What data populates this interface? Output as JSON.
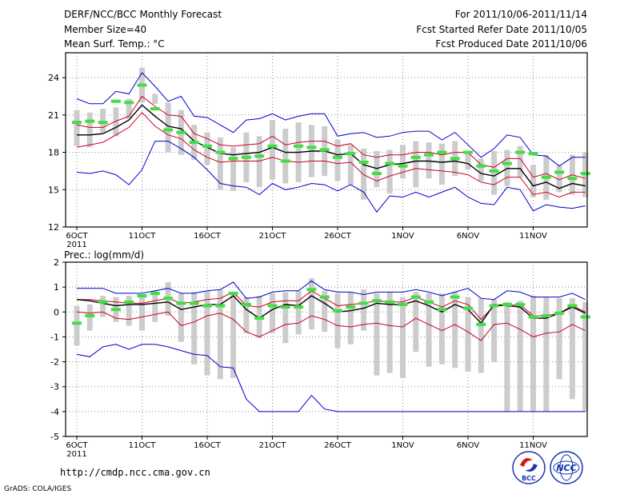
{
  "header": {
    "title": "DERF/NCC/BCC Monthly Forecast",
    "member_size": "Member Size=40",
    "variable": "Mean Surf. Temp.: °C",
    "period": "For 2011/10/06-2011/11/14",
    "fcst_started": "Fcst Started Refer Date 2011/10/05",
    "fcst_produced": "Fcst Produced Date 2011/10/06"
  },
  "footer": {
    "url": "http://cmdp.ncc.cma.gov.cn",
    "credit": "GrADS: COLA/IGES",
    "logo_bcc": "BCC",
    "logo_ncc": "NCC"
  },
  "colors": {
    "envelope": "#0000cc",
    "spread": "#cc0022",
    "mean": "#000000",
    "box": "#cccccc",
    "obs": "#44dd44",
    "grid": "#888888"
  },
  "chart_data": [
    {
      "type": "line",
      "title": "Mean Surf. Temp.: °C",
      "ylim": [
        12,
        26
      ],
      "yticks": [
        12,
        15,
        18,
        21,
        24
      ],
      "x": [
        1,
        2,
        3,
        4,
        5,
        6,
        7,
        8,
        9,
        10,
        11,
        12,
        13,
        14,
        15,
        16,
        17,
        18,
        19,
        20,
        21,
        22,
        23,
        24,
        25,
        26,
        27,
        28,
        29,
        30,
        31,
        32,
        33,
        34,
        35,
        36,
        37,
        38,
        39,
        40
      ],
      "xticks": [
        {
          "x": 1,
          "label": "6OCT",
          "year": "2011"
        },
        {
          "x": 6,
          "label": "11OCT"
        },
        {
          "x": 11,
          "label": "16OCT"
        },
        {
          "x": 16,
          "label": "21OCT"
        },
        {
          "x": 21,
          "label": "26OCT"
        },
        {
          "x": 26,
          "label": "1NOV"
        },
        {
          "x": 31,
          "label": "6NOV"
        },
        {
          "x": 36,
          "label": "11NOV"
        }
      ],
      "series": [
        {
          "name": "max",
          "color": "#0000cc",
          "values": [
            16.4,
            16.3,
            16.5,
            16.2,
            15.4,
            16.6,
            18.9,
            18.9,
            18.3,
            17.6,
            16.6,
            15.5,
            15.3,
            15.2,
            14.6,
            15.5,
            15.0,
            15.2,
            15.5,
            15.4,
            14.9,
            15.4,
            14.8,
            13.2,
            14.5,
            14.4,
            14.8,
            14.4,
            14.8,
            15.2,
            14.4,
            13.9,
            13.8,
            15.2,
            15.0,
            13.3,
            13.8,
            13.6,
            13.5,
            13.7
          ]
        },
        {
          "name": "min",
          "color": "#0000cc",
          "values": [
            22.3,
            21.9,
            21.9,
            22.9,
            22.7,
            24.4,
            23.3,
            22.1,
            22.5,
            20.9,
            20.8,
            20.2,
            19.6,
            20.6,
            20.7,
            21.1,
            20.6,
            20.9,
            21.1,
            21.1,
            19.3,
            19.5,
            19.6,
            19.2,
            19.3,
            19.6,
            19.7,
            19.7,
            19.0,
            19.6,
            18.6,
            17.6,
            18.3,
            19.4,
            19.2,
            17.8,
            17.7,
            16.9,
            17.6,
            17.6
          ]
        },
        {
          "name": "upper",
          "color": "#cc0022",
          "values": [
            20.2,
            20.0,
            20.0,
            20.5,
            20.9,
            22.5,
            21.7,
            21.0,
            20.9,
            19.5,
            19.1,
            18.6,
            18.5,
            18.6,
            18.7,
            19.3,
            18.6,
            18.8,
            18.9,
            18.9,
            18.5,
            18.7,
            17.8,
            17.6,
            17.8,
            17.8,
            18.0,
            18.0,
            17.8,
            18.0,
            18.0,
            17.0,
            16.8,
            17.5,
            17.5,
            16.0,
            16.3,
            15.8,
            16.2,
            15.9
          ]
        },
        {
          "name": "lower",
          "color": "#cc0022",
          "values": [
            18.4,
            18.6,
            18.8,
            19.4,
            20.0,
            21.2,
            20.1,
            19.4,
            19.1,
            18.2,
            17.6,
            17.2,
            17.3,
            17.3,
            17.3,
            17.6,
            17.3,
            17.2,
            17.3,
            17.3,
            17.1,
            17.2,
            16.2,
            15.7,
            16.1,
            16.4,
            16.7,
            16.6,
            16.5,
            16.4,
            16.2,
            15.6,
            15.4,
            16.0,
            16.0,
            14.6,
            14.8,
            14.4,
            14.8,
            14.8
          ]
        },
        {
          "name": "mean",
          "color": "#000000",
          "values": [
            19.4,
            19.4,
            19.5,
            20.0,
            20.6,
            21.8,
            20.9,
            20.1,
            19.9,
            18.9,
            18.4,
            17.9,
            17.8,
            17.9,
            18.0,
            18.4,
            18.0,
            18.0,
            18.1,
            18.1,
            17.8,
            17.9,
            17.0,
            16.7,
            17.0,
            17.1,
            17.3,
            17.3,
            17.2,
            17.3,
            17.1,
            16.3,
            16.1,
            16.7,
            16.7,
            15.3,
            15.6,
            15.1,
            15.5,
            15.3
          ]
        }
      ],
      "box": {
        "low": [
          18.5,
          18.4,
          19.6,
          19.3,
          20.7,
          22.0,
          21.9,
          18.0,
          17.8,
          17.4,
          17.0,
          15.0,
          14.9,
          15.6,
          15.2,
          15.8,
          15.5,
          15.6,
          16.0,
          16.1,
          15.7,
          15.4,
          14.2,
          15.2,
          14.7,
          15.9,
          15.2,
          15.9,
          15.4,
          16.1,
          16.6,
          15.7,
          14.6,
          15.3,
          16.0,
          14.4,
          14.2,
          14.8,
          14.6,
          14.4
        ],
        "high": [
          21.4,
          21.2,
          21.5,
          21.6,
          22.3,
          24.8,
          22.7,
          22.0,
          21.4,
          20.2,
          19.6,
          19.2,
          18.4,
          19.6,
          19.3,
          20.6,
          19.9,
          20.4,
          20.2,
          20.1,
          19.0,
          18.6,
          18.3,
          18.1,
          18.2,
          18.6,
          18.9,
          18.8,
          18.7,
          18.9,
          18.0,
          17.5,
          18.1,
          18.2,
          18.5,
          17.0,
          17.8,
          16.9,
          17.8,
          18.0
        ]
      },
      "obs": [
        20.4,
        20.5,
        20.4,
        22.1,
        22.0,
        23.4,
        21.5,
        19.8,
        19.6,
        18.8,
        18.5,
        18.0,
        17.5,
        17.6,
        17.7,
        18.5,
        17.3,
        18.5,
        18.4,
        18.2,
        17.6,
        17.9,
        17.2,
        16.3,
        17.1,
        16.9,
        17.6,
        17.8,
        18.0,
        17.5,
        18.0,
        16.9,
        16.5,
        17.1,
        18.0,
        17.9,
        16.0,
        16.4,
        15.9,
        16.3
      ]
    },
    {
      "type": "line",
      "title": "Prec.: log(mm/d)",
      "ylim": [
        -5,
        2
      ],
      "yticks": [
        -5,
        -4,
        -3,
        -2,
        -1,
        0,
        1,
        2
      ],
      "x": [
        1,
        2,
        3,
        4,
        5,
        6,
        7,
        8,
        9,
        10,
        11,
        12,
        13,
        14,
        15,
        16,
        17,
        18,
        19,
        20,
        21,
        22,
        23,
        24,
        25,
        26,
        27,
        28,
        29,
        30,
        31,
        32,
        33,
        34,
        35,
        36,
        37,
        38,
        39,
        40
      ],
      "xticks": [
        {
          "x": 1,
          "label": "6OCT",
          "year": "2011"
        },
        {
          "x": 6,
          "label": "11OCT"
        },
        {
          "x": 11,
          "label": "16OCT"
        },
        {
          "x": 16,
          "label": "21OCT"
        },
        {
          "x": 21,
          "label": "26OCT"
        },
        {
          "x": 26,
          "label": "1NOV"
        },
        {
          "x": 31,
          "label": "6NOV"
        },
        {
          "x": 36,
          "label": "11NOV"
        }
      ],
      "series": [
        {
          "name": "max",
          "color": "#0000cc",
          "values": [
            0.95,
            0.95,
            0.95,
            0.75,
            0.75,
            0.75,
            0.85,
            0.95,
            0.75,
            0.75,
            0.85,
            0.9,
            1.2,
            0.55,
            0.6,
            0.8,
            0.85,
            0.85,
            1.25,
            0.9,
            0.8,
            0.8,
            0.7,
            0.8,
            0.8,
            0.8,
            0.9,
            0.8,
            0.65,
            0.8,
            0.95,
            0.55,
            0.5,
            0.85,
            0.8,
            0.6,
            0.6,
            0.6,
            0.75,
            0.5
          ]
        },
        {
          "name": "min",
          "color": "#0000cc",
          "values": [
            -1.7,
            -1.8,
            -1.4,
            -1.3,
            -1.5,
            -1.3,
            -1.3,
            -1.4,
            -1.55,
            -1.7,
            -1.75,
            -2.2,
            -2.25,
            -3.5,
            -4.0,
            -4.0,
            -4.0,
            -4.0,
            -3.35,
            -3.9,
            -4.0,
            -4.0,
            -4.0,
            -4.0,
            -4.0,
            -4.0,
            -4.0,
            -4.0,
            -4.0,
            -4.0,
            -4.0,
            -4.0,
            -4.0,
            -4.0,
            -4.0,
            -4.0,
            -4.0,
            -4.0,
            -4.0,
            -4.0
          ]
        },
        {
          "name": "upper",
          "color": "#cc0022",
          "values": [
            0.5,
            0.5,
            0.45,
            0.4,
            0.35,
            0.35,
            0.45,
            0.55,
            0.35,
            0.4,
            0.5,
            0.55,
            0.8,
            0.25,
            0.2,
            0.4,
            0.45,
            0.45,
            0.85,
            0.55,
            0.25,
            0.3,
            0.35,
            0.45,
            0.4,
            0.4,
            0.6,
            0.4,
            0.2,
            0.45,
            0.3,
            -0.3,
            0.25,
            0.25,
            0.3,
            -0.15,
            -0.15,
            -0.05,
            0.25,
            0.0
          ]
        },
        {
          "name": "lower",
          "color": "#cc0022",
          "values": [
            0.0,
            -0.05,
            0.0,
            -0.25,
            -0.3,
            -0.2,
            -0.1,
            0.0,
            -0.55,
            -0.4,
            -0.15,
            -0.05,
            -0.3,
            -0.8,
            -1.0,
            -0.75,
            -0.5,
            -0.45,
            -0.15,
            -0.3,
            -0.55,
            -0.6,
            -0.5,
            -0.45,
            -0.55,
            -0.6,
            -0.25,
            -0.5,
            -0.75,
            -0.5,
            -0.8,
            -1.15,
            -0.5,
            -0.45,
            -0.7,
            -1.0,
            -0.85,
            -0.8,
            -0.5,
            -0.75
          ]
        },
        {
          "name": "mean",
          "color": "#000000",
          "values": [
            0.5,
            0.45,
            0.35,
            0.25,
            0.3,
            0.3,
            0.35,
            0.4,
            0.1,
            0.2,
            0.3,
            0.3,
            0.65,
            0.1,
            -0.25,
            0.1,
            0.3,
            0.25,
            0.65,
            0.35,
            0.0,
            0.05,
            0.15,
            0.35,
            0.3,
            0.3,
            0.45,
            0.25,
            0.0,
            0.3,
            0.1,
            -0.45,
            0.3,
            0.25,
            0.2,
            -0.25,
            -0.25,
            -0.05,
            0.2,
            -0.05
          ]
        }
      ],
      "box": {
        "low": [
          -1.35,
          -0.75,
          -0.2,
          -0.4,
          -0.55,
          -0.75,
          -0.4,
          -0.15,
          -1.2,
          -2.1,
          -2.55,
          -2.7,
          -2.65,
          -0.85,
          -1.05,
          -0.85,
          -1.25,
          -0.9,
          -0.7,
          -0.8,
          -1.45,
          -1.3,
          -0.75,
          -2.55,
          -2.45,
          -2.65,
          -1.6,
          -2.2,
          -2.1,
          -2.25,
          -2.4,
          -2.45,
          -2.0,
          -4.0,
          -4.0,
          -4.0,
          -4.0,
          -2.7,
          -3.5,
          -4.0
        ],
        "high": [
          0.25,
          0.3,
          0.65,
          0.6,
          0.65,
          0.7,
          0.85,
          1.2,
          0.75,
          0.8,
          0.85,
          0.9,
          0.8,
          0.6,
          0.65,
          0.75,
          0.8,
          0.85,
          1.35,
          0.85,
          0.75,
          0.8,
          0.9,
          0.75,
          0.8,
          0.6,
          0.8,
          0.75,
          0.75,
          0.8,
          0.6,
          0.55,
          0.5,
          0.4,
          0.45,
          0.65,
          0.6,
          0.55,
          0.55,
          0.4
        ]
      },
      "obs": [
        -0.45,
        -0.15,
        0.4,
        0.1,
        0.4,
        0.65,
        0.75,
        0.55,
        0.35,
        0.35,
        0.25,
        0.25,
        0.75,
        0.3,
        -0.25,
        0.25,
        0.2,
        0.2,
        0.9,
        0.6,
        0.05,
        0.2,
        0.35,
        0.45,
        0.4,
        0.3,
        0.6,
        0.4,
        0.1,
        0.6,
        0.15,
        -0.5,
        0.25,
        0.3,
        0.3,
        -0.2,
        -0.15,
        -0.05,
        0.25,
        -0.2
      ]
    }
  ]
}
